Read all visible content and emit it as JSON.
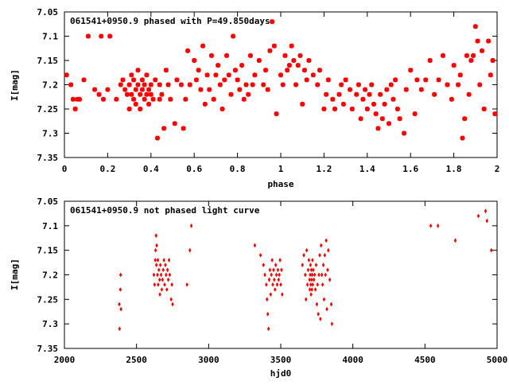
{
  "marker_color": "#ff0000",
  "chart_data": [
    {
      "type": "scatter",
      "title": "061541+0950.9 phased with P=49.850days",
      "xlabel": "phase",
      "ylabel": "I[mag]",
      "xlim": [
        0,
        2
      ],
      "ylim": [
        7.35,
        7.05
      ],
      "y_inverted": true,
      "grid": false,
      "xticks": [
        "0",
        "0.2",
        "0.4",
        "0.6",
        "0.8",
        "1",
        "1.2",
        "1.4",
        "1.6",
        "1.8",
        "2"
      ],
      "yticks": [
        "7.05",
        "7.1",
        "7.15",
        "7.2",
        "7.25",
        "7.3",
        "7.35"
      ],
      "marker": "star",
      "points": [
        [
          0.01,
          7.18
        ],
        [
          0.03,
          7.2
        ],
        [
          0.04,
          7.23
        ],
        [
          0.05,
          7.25
        ],
        [
          0.06,
          7.23
        ],
        [
          0.07,
          7.23
        ],
        [
          0.09,
          7.19
        ],
        [
          0.11,
          7.1
        ],
        [
          0.14,
          7.21
        ],
        [
          0.16,
          7.22
        ],
        [
          0.17,
          7.1
        ],
        [
          0.18,
          7.23
        ],
        [
          0.2,
          7.21
        ],
        [
          0.21,
          7.1
        ],
        [
          0.24,
          7.23
        ],
        [
          0.26,
          7.2
        ],
        [
          0.27,
          7.19
        ],
        [
          0.28,
          7.21
        ],
        [
          0.29,
          7.22
        ],
        [
          0.3,
          7.25
        ],
        [
          0.3,
          7.2
        ],
        [
          0.31,
          7.18
        ],
        [
          0.31,
          7.22
        ],
        [
          0.32,
          7.23
        ],
        [
          0.32,
          7.19
        ],
        [
          0.33,
          7.21
        ],
        [
          0.33,
          7.24
        ],
        [
          0.34,
          7.2
        ],
        [
          0.34,
          7.17
        ],
        [
          0.35,
          7.22
        ],
        [
          0.35,
          7.25
        ],
        [
          0.36,
          7.19
        ],
        [
          0.36,
          7.21
        ],
        [
          0.37,
          7.23
        ],
        [
          0.37,
          7.2
        ],
        [
          0.38,
          7.22
        ],
        [
          0.38,
          7.18
        ],
        [
          0.39,
          7.21
        ],
        [
          0.39,
          7.24
        ],
        [
          0.4,
          7.2
        ],
        [
          0.4,
          7.22
        ],
        [
          0.41,
          7.23
        ],
        [
          0.42,
          7.19
        ],
        [
          0.43,
          7.31
        ],
        [
          0.44,
          7.2
        ],
        [
          0.44,
          7.23
        ],
        [
          0.45,
          7.22
        ],
        [
          0.46,
          7.29
        ],
        [
          0.47,
          7.17
        ],
        [
          0.48,
          7.2
        ],
        [
          0.49,
          7.23
        ],
        [
          0.51,
          7.28
        ],
        [
          0.52,
          7.19
        ],
        [
          0.54,
          7.2
        ],
        [
          0.55,
          7.29
        ],
        [
          0.56,
          7.23
        ],
        [
          0.57,
          7.13
        ],
        [
          0.58,
          7.2
        ],
        [
          0.6,
          7.15
        ],
        [
          0.61,
          7.19
        ],
        [
          0.62,
          7.17
        ],
        [
          0.63,
          7.21
        ],
        [
          0.64,
          7.12
        ],
        [
          0.65,
          7.24
        ],
        [
          0.66,
          7.18
        ],
        [
          0.67,
          7.21
        ],
        [
          0.68,
          7.14
        ],
        [
          0.69,
          7.23
        ],
        [
          0.7,
          7.18
        ],
        [
          0.71,
          7.16
        ],
        [
          0.72,
          7.2
        ],
        [
          0.73,
          7.25
        ],
        [
          0.74,
          7.19
        ],
        [
          0.75,
          7.14
        ],
        [
          0.76,
          7.18
        ],
        [
          0.77,
          7.22
        ],
        [
          0.78,
          7.1
        ],
        [
          0.79,
          7.17
        ],
        [
          0.8,
          7.19
        ],
        [
          0.81,
          7.21
        ],
        [
          0.82,
          7.16
        ],
        [
          0.83,
          7.23
        ],
        [
          0.84,
          7.2
        ],
        [
          0.85,
          7.22
        ],
        [
          0.86,
          7.14
        ],
        [
          0.87,
          7.2
        ],
        [
          0.88,
          7.18
        ],
        [
          0.9,
          7.15
        ],
        [
          0.92,
          7.2
        ],
        [
          0.93,
          7.17
        ],
        [
          0.94,
          7.21
        ],
        [
          0.95,
          7.13
        ],
        [
          0.96,
          7.07
        ],
        [
          0.97,
          7.12
        ],
        [
          0.98,
          7.26
        ],
        [
          1.0,
          7.18
        ],
        [
          1.01,
          7.2
        ],
        [
          1.02,
          7.14
        ],
        [
          1.03,
          7.17
        ],
        [
          1.04,
          7.16
        ],
        [
          1.05,
          7.12
        ],
        [
          1.06,
          7.15
        ],
        [
          1.07,
          7.2
        ],
        [
          1.08,
          7.16
        ],
        [
          1.09,
          7.14
        ],
        [
          1.1,
          7.24
        ],
        [
          1.11,
          7.17
        ],
        [
          1.12,
          7.19
        ],
        [
          1.13,
          7.15
        ],
        [
          1.15,
          7.18
        ],
        [
          1.17,
          7.2
        ],
        [
          1.18,
          7.17
        ],
        [
          1.2,
          7.25
        ],
        [
          1.21,
          7.22
        ],
        [
          1.22,
          7.19
        ],
        [
          1.24,
          7.23
        ],
        [
          1.25,
          7.25
        ],
        [
          1.27,
          7.22
        ],
        [
          1.28,
          7.2
        ],
        [
          1.29,
          7.24
        ],
        [
          1.3,
          7.19
        ],
        [
          1.32,
          7.21
        ],
        [
          1.33,
          7.25
        ],
        [
          1.35,
          7.22
        ],
        [
          1.36,
          7.2
        ],
        [
          1.37,
          7.27
        ],
        [
          1.38,
          7.23
        ],
        [
          1.39,
          7.21
        ],
        [
          1.4,
          7.25
        ],
        [
          1.41,
          7.22
        ],
        [
          1.42,
          7.2
        ],
        [
          1.43,
          7.24
        ],
        [
          1.44,
          7.26
        ],
        [
          1.45,
          7.29
        ],
        [
          1.46,
          7.22
        ],
        [
          1.47,
          7.27
        ],
        [
          1.48,
          7.24
        ],
        [
          1.49,
          7.21
        ],
        [
          1.5,
          7.28
        ],
        [
          1.51,
          7.2
        ],
        [
          1.52,
          7.23
        ],
        [
          1.53,
          7.19
        ],
        [
          1.54,
          7.25
        ],
        [
          1.55,
          7.27
        ],
        [
          1.57,
          7.3
        ],
        [
          1.58,
          7.21
        ],
        [
          1.6,
          7.17
        ],
        [
          1.62,
          7.26
        ],
        [
          1.63,
          7.19
        ],
        [
          1.65,
          7.21
        ],
        [
          1.67,
          7.19
        ],
        [
          1.69,
          7.15
        ],
        [
          1.71,
          7.22
        ],
        [
          1.73,
          7.19
        ],
        [
          1.75,
          7.14
        ],
        [
          1.77,
          7.2
        ],
        [
          1.79,
          7.23
        ],
        [
          1.8,
          7.16
        ],
        [
          1.82,
          7.2
        ],
        [
          1.83,
          7.18
        ],
        [
          1.84,
          7.31
        ],
        [
          1.85,
          7.27
        ],
        [
          1.86,
          7.14
        ],
        [
          1.87,
          7.22
        ],
        [
          1.88,
          7.15
        ],
        [
          1.89,
          7.14
        ],
        [
          1.9,
          7.08
        ],
        [
          1.91,
          7.11
        ],
        [
          1.92,
          7.2
        ],
        [
          1.93,
          7.13
        ],
        [
          1.94,
          7.25
        ],
        [
          1.96,
          7.11
        ],
        [
          1.97,
          7.18
        ],
        [
          1.98,
          7.15
        ],
        [
          1.99,
          7.26
        ]
      ]
    },
    {
      "type": "scatter",
      "title": "061541+0950.9 not phased light curve",
      "xlabel": "hjd0",
      "ylabel": "I[mag]",
      "xlim": [
        2000,
        5000
      ],
      "ylim": [
        7.35,
        7.05
      ],
      "y_inverted": true,
      "grid": false,
      "xticks": [
        "2000",
        "2500",
        "3000",
        "3500",
        "4000",
        "4500",
        "5000"
      ],
      "yticks": [
        "7.05",
        "7.1",
        "7.15",
        "7.2",
        "7.25",
        "7.3",
        "7.35"
      ],
      "marker": "diamond",
      "points": [
        [
          2380,
          7.26
        ],
        [
          2382,
          7.31
        ],
        [
          2388,
          7.23
        ],
        [
          2390,
          7.2
        ],
        [
          2392,
          7.27
        ],
        [
          2620,
          7.2
        ],
        [
          2625,
          7.22
        ],
        [
          2630,
          7.17
        ],
        [
          2632,
          7.15
        ],
        [
          2635,
          7.12
        ],
        [
          2638,
          7.18
        ],
        [
          2640,
          7.14
        ],
        [
          2645,
          7.2
        ],
        [
          2648,
          7.17
        ],
        [
          2650,
          7.22
        ],
        [
          2655,
          7.19
        ],
        [
          2660,
          7.21
        ],
        [
          2662,
          7.24
        ],
        [
          2665,
          7.18
        ],
        [
          2670,
          7.2
        ],
        [
          2675,
          7.23
        ],
        [
          2680,
          7.21
        ],
        [
          2685,
          7.19
        ],
        [
          2690,
          7.17
        ],
        [
          2695,
          7.22
        ],
        [
          2700,
          7.18
        ],
        [
          2705,
          7.2
        ],
        [
          2710,
          7.23
        ],
        [
          2715,
          7.19
        ],
        [
          2720,
          7.21
        ],
        [
          2725,
          7.17
        ],
        [
          2730,
          7.2
        ],
        [
          2740,
          7.25
        ],
        [
          2745,
          7.22
        ],
        [
          2750,
          7.26
        ],
        [
          2850,
          7.22
        ],
        [
          2870,
          7.15
        ],
        [
          2880,
          7.1
        ],
        [
          3320,
          7.14
        ],
        [
          3360,
          7.16
        ],
        [
          3380,
          7.18
        ],
        [
          3390,
          7.2
        ],
        [
          3400,
          7.22
        ],
        [
          3405,
          7.25
        ],
        [
          3410,
          7.28
        ],
        [
          3415,
          7.31
        ],
        [
          3420,
          7.21
        ],
        [
          3425,
          7.19
        ],
        [
          3430,
          7.24
        ],
        [
          3435,
          7.2
        ],
        [
          3440,
          7.17
        ],
        [
          3445,
          7.22
        ],
        [
          3450,
          7.19
        ],
        [
          3455,
          7.21
        ],
        [
          3460,
          7.23
        ],
        [
          3465,
          7.18
        ],
        [
          3470,
          7.2
        ],
        [
          3475,
          7.22
        ],
        [
          3480,
          7.19
        ],
        [
          3485,
          7.21
        ],
        [
          3490,
          7.2
        ],
        [
          3495,
          7.17
        ],
        [
          3500,
          7.22
        ],
        [
          3505,
          7.19
        ],
        [
          3510,
          7.24
        ],
        [
          3650,
          7.18
        ],
        [
          3660,
          7.16
        ],
        [
          3670,
          7.2
        ],
        [
          3675,
          7.25
        ],
        [
          3680,
          7.15
        ],
        [
          3685,
          7.22
        ],
        [
          3690,
          7.19
        ],
        [
          3695,
          7.17
        ],
        [
          3700,
          7.21
        ],
        [
          3702,
          7.23
        ],
        [
          3704,
          7.2
        ],
        [
          3706,
          7.18
        ],
        [
          3708,
          7.22
        ],
        [
          3710,
          7.24
        ],
        [
          3712,
          7.19
        ],
        [
          3714,
          7.21
        ],
        [
          3716,
          7.23
        ],
        [
          3718,
          7.2
        ],
        [
          3720,
          7.17
        ],
        [
          3722,
          7.22
        ],
        [
          3725,
          7.19
        ],
        [
          3730,
          7.21
        ],
        [
          3735,
          7.2
        ],
        [
          3740,
          7.23
        ],
        [
          3745,
          7.18
        ],
        [
          3750,
          7.26
        ],
        [
          3755,
          7.22
        ],
        [
          3760,
          7.28
        ],
        [
          3765,
          7.2
        ],
        [
          3770,
          7.16
        ],
        [
          3775,
          7.29
        ],
        [
          3780,
          7.14
        ],
        [
          3785,
          7.2
        ],
        [
          3790,
          7.22
        ],
        [
          3795,
          7.18
        ],
        [
          3800,
          7.25
        ],
        [
          3805,
          7.16
        ],
        [
          3810,
          7.2
        ],
        [
          3815,
          7.13
        ],
        [
          3820,
          7.27
        ],
        [
          3825,
          7.19
        ],
        [
          3830,
          7.15
        ],
        [
          3840,
          7.21
        ],
        [
          3850,
          7.26
        ],
        [
          3855,
          7.3
        ],
        [
          4540,
          7.1
        ],
        [
          4590,
          7.1
        ],
        [
          4710,
          7.13
        ],
        [
          4870,
          7.08
        ],
        [
          4920,
          7.07
        ],
        [
          4930,
          7.09
        ],
        [
          4960,
          7.15
        ]
      ]
    }
  ]
}
